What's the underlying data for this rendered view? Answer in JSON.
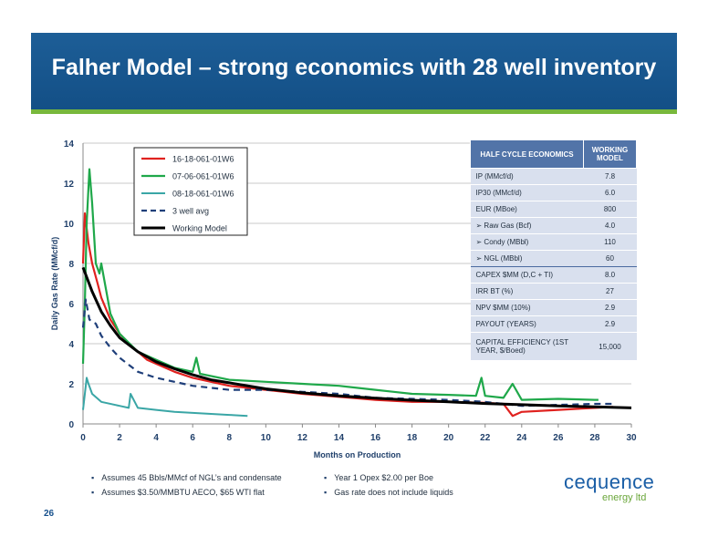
{
  "header": {
    "title": "Falher Model – strong economics with 28 well inventory"
  },
  "page_number": "26",
  "notes": {
    "left": [
      "Assumes 45 Bbls/MMcf of NGL’s and condensate",
      "Assumes $3.50/MMBTU AECO, $65 WTI flat"
    ],
    "right": [
      "Year 1 Opex $2.00 per Boe",
      "Gas rate does not include liquids"
    ]
  },
  "logo": {
    "name": "cequence",
    "sub": "energy ltd"
  },
  "table": {
    "headers": [
      "HALF CYCLE ECONOMICS",
      "WORKING MODEL"
    ],
    "rows": [
      [
        "IP (MMcf/d)",
        "7.8"
      ],
      [
        "IP30 (MMcf/d)",
        "6.0"
      ],
      [
        "EUR (MBoe)",
        "800"
      ],
      [
        "➢  Raw Gas (Bcf)",
        "4.0"
      ],
      [
        "➢  Condy (MBbl)",
        "110"
      ],
      [
        "➢  NGL (MBbl)",
        "60"
      ],
      [
        "CAPEX $MM (D,C + TI)",
        "8.0"
      ],
      [
        "IRR BT (%)",
        "27"
      ],
      [
        "NPV $MM (10%)",
        "2.9"
      ],
      [
        "PAYOUT (YEARS)",
        "2.9"
      ],
      [
        "CAPITAL EFFICIENCY (1ST YEAR, $/Boed)",
        "15,000"
      ]
    ]
  },
  "colors": {
    "header": "#1d5e97",
    "accent": "#78b83c"
  },
  "chart_data": {
    "type": "line",
    "xlabel": "Months on Production",
    "ylabel": "Daily Gas Rate (MMcf/d)",
    "xlim": [
      0,
      30
    ],
    "ylim": [
      0,
      14
    ],
    "xticks": [
      0,
      2,
      4,
      6,
      8,
      10,
      12,
      14,
      16,
      18,
      20,
      22,
      24,
      26,
      28,
      30
    ],
    "yticks": [
      0,
      2,
      4,
      6,
      8,
      10,
      12,
      14
    ],
    "grid": true,
    "legend": "top-left",
    "series": [
      {
        "name": "16-18-061-01W6",
        "color": "#e0221f",
        "style": "solid",
        "width": 2.2,
        "x": [
          0,
          0.1,
          0.3,
          0.5,
          0.8,
          1,
          1.5,
          2,
          2.5,
          3,
          3.5,
          4,
          5,
          6,
          7,
          8,
          9,
          10,
          11,
          12,
          14,
          16,
          18,
          20,
          22,
          23,
          23.5,
          24,
          26,
          28,
          29
        ],
        "y": [
          8,
          10.5,
          9,
          8,
          7,
          6.3,
          5.2,
          4.5,
          4,
          3.6,
          3.2,
          3,
          2.6,
          2.3,
          2.1,
          1.9,
          1.8,
          1.7,
          1.6,
          1.5,
          1.35,
          1.2,
          1.1,
          1.1,
          1.05,
          1,
          0.4,
          0.6,
          0.7,
          0.8,
          0.85
        ]
      },
      {
        "name": "07-06-061-01W6",
        "color": "#1fa84a",
        "style": "solid",
        "width": 2.2,
        "x": [
          0,
          0.1,
          0.2,
          0.35,
          0.5,
          0.7,
          0.9,
          1,
          1.5,
          2,
          3,
          4,
          5,
          6,
          6.2,
          6.4,
          8,
          10,
          12,
          14,
          16,
          17,
          18,
          20,
          21.5,
          21.8,
          22,
          23,
          23.5,
          24,
          26,
          28,
          28.2
        ],
        "y": [
          3,
          6,
          10,
          12.7,
          11,
          8,
          7.5,
          8,
          5.5,
          4.5,
          3.6,
          3.2,
          2.8,
          2.6,
          3.3,
          2.5,
          2.2,
          2.1,
          2,
          1.9,
          1.7,
          1.6,
          1.5,
          1.45,
          1.4,
          2.3,
          1.4,
          1.3,
          2,
          1.2,
          1.25,
          1.2,
          1.2
        ]
      },
      {
        "name": "08-18-061-01W6",
        "color": "#3aa6a6",
        "style": "solid",
        "width": 2,
        "x": [
          0,
          0.1,
          0.2,
          0.3,
          0.5,
          1,
          2,
          2.5,
          2.6,
          3,
          4,
          5,
          6,
          7,
          8,
          9
        ],
        "y": [
          0.7,
          1.5,
          2.3,
          2,
          1.5,
          1.1,
          0.9,
          0.8,
          1.5,
          0.8,
          0.7,
          0.6,
          0.55,
          0.5,
          0.45,
          0.4
        ]
      },
      {
        "name": "3 well avg",
        "color": "#1f3f7a",
        "style": "dash",
        "width": 2.2,
        "x": [
          0,
          0.15,
          0.35,
          0.7,
          1,
          1.5,
          2,
          3,
          4,
          5,
          6,
          8,
          10,
          12,
          14,
          16,
          18,
          20,
          22,
          24,
          26,
          28,
          29
        ],
        "y": [
          4.8,
          6.2,
          5.2,
          5,
          4.4,
          3.8,
          3.3,
          2.6,
          2.3,
          2.1,
          1.9,
          1.7,
          1.7,
          1.6,
          1.5,
          1.3,
          1.25,
          1.2,
          1.1,
          0.9,
          0.95,
          1,
          1
        ]
      },
      {
        "name": "Working Model",
        "color": "#000000",
        "style": "solid",
        "width": 3,
        "x": [
          0,
          0.5,
          1,
          1.5,
          2,
          3,
          4,
          5,
          6,
          7,
          8,
          10,
          12,
          14,
          16,
          18,
          20,
          22,
          24,
          26,
          28,
          30
        ],
        "y": [
          7.8,
          6.6,
          5.6,
          4.9,
          4.3,
          3.6,
          3.1,
          2.75,
          2.45,
          2.2,
          2.05,
          1.75,
          1.55,
          1.4,
          1.28,
          1.18,
          1.1,
          1.02,
          0.96,
          0.9,
          0.85,
          0.8
        ]
      }
    ]
  }
}
